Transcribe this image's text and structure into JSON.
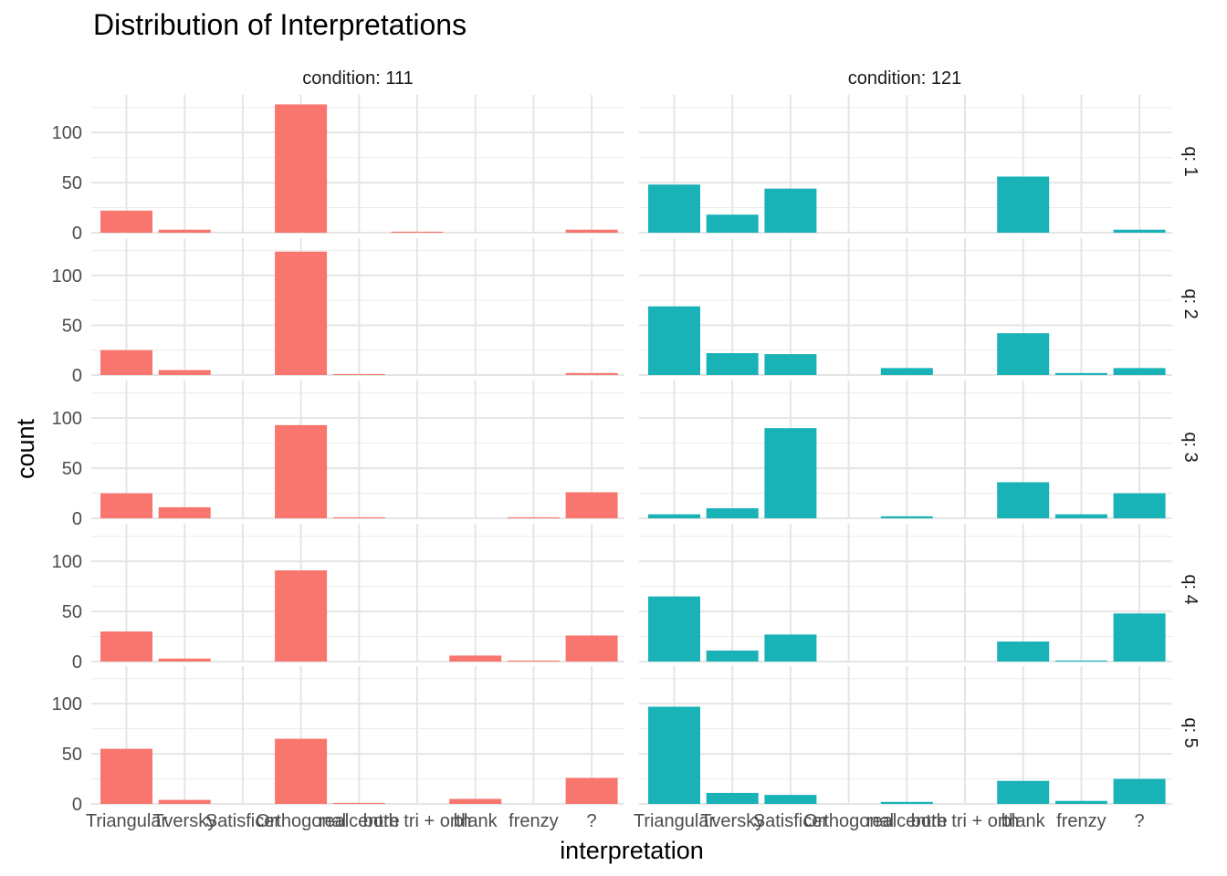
{
  "chart_data": {
    "type": "bar",
    "title": "Distribution of Interpretations",
    "xlabel": "interpretation",
    "ylabel": "count",
    "ylim": [
      0,
      130
    ],
    "yticks": [
      0,
      50,
      100
    ],
    "grid": true,
    "legend": "none",
    "categories": [
      "Triangular",
      "Tversky",
      "Satisficer",
      "Orthogonal",
      "realcentre",
      "both tri + orth",
      "blank",
      "frenzy",
      "?"
    ],
    "columns": [
      {
        "label": "condition: 111",
        "color": "#F8766D"
      },
      {
        "label": "condition: 121",
        "color": "#19B3B7"
      }
    ],
    "rows": [
      {
        "label": "q: 1"
      },
      {
        "label": "q: 2"
      },
      {
        "label": "q: 3"
      },
      {
        "label": "q: 4"
      },
      {
        "label": "q: 5"
      }
    ],
    "panels": [
      {
        "row": "q: 1",
        "column": "condition: 111",
        "values": [
          22,
          3,
          0,
          128,
          0,
          1,
          0,
          0,
          3
        ]
      },
      {
        "row": "q: 1",
        "column": "condition: 121",
        "values": [
          48,
          18,
          44,
          0,
          0,
          0,
          56,
          0,
          3
        ]
      },
      {
        "row": "q: 2",
        "column": "condition: 111",
        "values": [
          25,
          5,
          0,
          124,
          1,
          0,
          0,
          0,
          2
        ]
      },
      {
        "row": "q: 2",
        "column": "condition: 121",
        "values": [
          69,
          22,
          21,
          0,
          7,
          0,
          42,
          2,
          7
        ]
      },
      {
        "row": "q: 3",
        "column": "condition: 111",
        "values": [
          25,
          11,
          0,
          93,
          1,
          0,
          0,
          1,
          26
        ]
      },
      {
        "row": "q: 3",
        "column": "condition: 121",
        "values": [
          4,
          10,
          90,
          0,
          2,
          0,
          36,
          4,
          25
        ]
      },
      {
        "row": "q: 4",
        "column": "condition: 111",
        "values": [
          30,
          3,
          0,
          91,
          0,
          0,
          6,
          1,
          26
        ]
      },
      {
        "row": "q: 4",
        "column": "condition: 121",
        "values": [
          65,
          11,
          27,
          0,
          0,
          0,
          20,
          1,
          48
        ]
      },
      {
        "row": "q: 5",
        "column": "condition: 111",
        "values": [
          55,
          4,
          0,
          65,
          1,
          0,
          5,
          0,
          26
        ]
      },
      {
        "row": "q: 5",
        "column": "condition: 121",
        "values": [
          97,
          11,
          9,
          0,
          2,
          0,
          23,
          3,
          25
        ]
      }
    ]
  }
}
